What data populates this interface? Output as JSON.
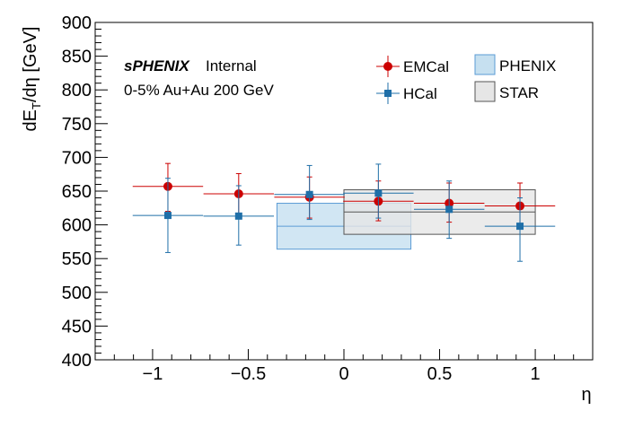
{
  "chart_data": {
    "type": "scatter",
    "xlabel": "η",
    "ylabel_parts": [
      "dE",
      "T",
      "/dη [GeV]"
    ],
    "xlim": [
      -1.3,
      1.3
    ],
    "ylim": [
      400,
      900
    ],
    "x_ticks": [
      -1,
      -0.5,
      0,
      0.5,
      1
    ],
    "x_tick_labels": [
      "−1",
      "−0.5",
      "0",
      "0.5",
      "1"
    ],
    "y_ticks": [
      400,
      450,
      500,
      550,
      600,
      650,
      700,
      750,
      800,
      850,
      900
    ],
    "grid": false,
    "annotations": {
      "brand": "sPHENIX",
      "status": "Internal",
      "system": "0-5% Au+Au 200 GeV"
    },
    "legend_position": "top-right",
    "series": [
      {
        "name": "EMCal",
        "marker": "circle",
        "color": "#cc0000",
        "points": [
          {
            "x": -0.92,
            "y": 657,
            "xerr": 0.184,
            "yerr_low": 37,
            "yerr_high": 34
          },
          {
            "x": -0.55,
            "y": 646,
            "xerr": 0.184,
            "yerr_low": 34,
            "yerr_high": 30
          },
          {
            "x": -0.18,
            "y": 641,
            "xerr": 0.184,
            "yerr_low": 31,
            "yerr_high": 30
          },
          {
            "x": 0.18,
            "y": 635,
            "xerr": 0.184,
            "yerr_low": 29,
            "yerr_high": 30
          },
          {
            "x": 0.55,
            "y": 632,
            "xerr": 0.184,
            "yerr_low": 28,
            "yerr_high": 30
          },
          {
            "x": 0.92,
            "y": 628,
            "xerr": 0.184,
            "yerr_low": 28,
            "yerr_high": 34
          }
        ]
      },
      {
        "name": "HCal",
        "marker": "square",
        "color": "#1f6fa8",
        "points": [
          {
            "x": -0.92,
            "y": 614,
            "xerr": 0.184,
            "yerr_low": 55,
            "yerr_high": 55
          },
          {
            "x": -0.55,
            "y": 613,
            "xerr": 0.184,
            "yerr_low": 43,
            "yerr_high": 45
          },
          {
            "x": -0.18,
            "y": 645,
            "xerr": 0.184,
            "yerr_low": 37,
            "yerr_high": 43
          },
          {
            "x": 0.18,
            "y": 647,
            "xerr": 0.184,
            "yerr_low": 37,
            "yerr_high": 43
          },
          {
            "x": 0.55,
            "y": 623,
            "xerr": 0.184,
            "yerr_low": 43,
            "yerr_high": 42
          },
          {
            "x": 0.92,
            "y": 598,
            "xerr": 0.184,
            "yerr_low": 52,
            "yerr_high": 42
          }
        ]
      }
    ],
    "bands": [
      {
        "name": "PHENIX",
        "x_range": [
          -0.35,
          0.35
        ],
        "center": 598,
        "y_range": [
          564,
          632
        ],
        "fill": "#c6e0f0",
        "stroke": "#5b9bd5"
      },
      {
        "name": "STAR",
        "x_range": [
          0,
          1
        ],
        "center": 619,
        "y_range": [
          586,
          652
        ],
        "fill": "#e6e6e6",
        "stroke": "#555555"
      }
    ]
  }
}
